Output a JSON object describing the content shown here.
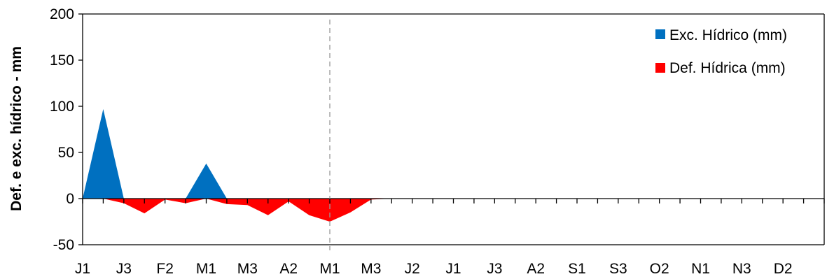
{
  "chart_data": {
    "type": "area",
    "title": "",
    "xlabel": "",
    "ylabel": "Def. e exc. hídrico - mm",
    "ylim": [
      -50,
      200
    ],
    "yticks": [
      200,
      150,
      100,
      50,
      0,
      -50
    ],
    "x_tick_labels": [
      "J1",
      "J3",
      "F2",
      "M1",
      "M3",
      "A2",
      "M1",
      "M3",
      "J2",
      "J1",
      "J3",
      "A2",
      "S1",
      "S3",
      "O2",
      "N1",
      "N3",
      "D2"
    ],
    "x_categories_count": 36,
    "grid": false,
    "legend_position": "top-right",
    "marker_line_label": "M1",
    "series": [
      {
        "name": "Exc. Hídrico (mm)",
        "color": "#0070C0",
        "points": [
          [
            0,
            0
          ],
          [
            1,
            97
          ],
          [
            2,
            0
          ],
          [
            5,
            0
          ],
          [
            6,
            38
          ],
          [
            7,
            0
          ]
        ]
      },
      {
        "name": "Def. Hídrica (mm)",
        "color": "#FF0000",
        "points": [
          [
            0,
            0
          ],
          [
            1,
            0
          ],
          [
            2,
            -5
          ],
          [
            3,
            -16
          ],
          [
            4,
            -1
          ],
          [
            5,
            -5
          ],
          [
            6,
            0
          ],
          [
            7,
            -6
          ],
          [
            8,
            -7
          ],
          [
            9,
            -18
          ],
          [
            10,
            -3
          ],
          [
            11,
            -18
          ],
          [
            12,
            -25
          ],
          [
            13,
            -15
          ],
          [
            14,
            -1
          ],
          [
            15,
            0
          ]
        ]
      }
    ]
  }
}
